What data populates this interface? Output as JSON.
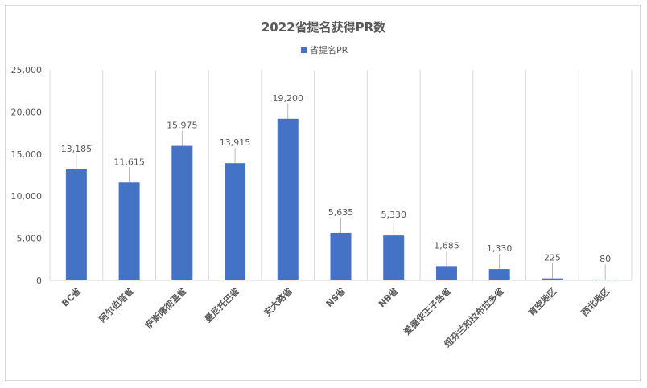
{
  "chart_data": {
    "type": "bar",
    "title": "2022省提名获得PR数",
    "categories": [
      "BC省",
      "阿尔伯塔省",
      "萨斯喀彻温省",
      "曼尼托巴省",
      "安大略省",
      "NS省",
      "NB省",
      "爱德华王子岛省",
      "纽芬兰和拉布拉多省",
      "育空地区",
      "西北地区"
    ],
    "series": [
      {
        "name": "省提名PR",
        "values": [
          13185,
          11615,
          15975,
          13915,
          19200,
          5635,
          5330,
          1685,
          1330,
          225,
          80
        ],
        "labels": [
          "13,185",
          "11,615",
          "15,975",
          "13,915",
          "19,200",
          "5,635",
          "5,330",
          "1,685",
          "1,330",
          "225",
          "80"
        ]
      }
    ],
    "ylim": [
      0,
      25000
    ],
    "yticks": [
      0,
      5000,
      10000,
      15000,
      20000,
      25000
    ],
    "ytick_labels": [
      "0",
      "5,000",
      "10,000",
      "15,000",
      "20,000",
      "25,000"
    ],
    "xlabel": "",
    "ylabel": "",
    "legend_position": "top-center",
    "grid": "vertical-lines-between-categories",
    "colors": {
      "bar": "#4472c4",
      "grid": "#d9d9d9",
      "text": "#595959",
      "leader": "#a6a6a6"
    }
  }
}
